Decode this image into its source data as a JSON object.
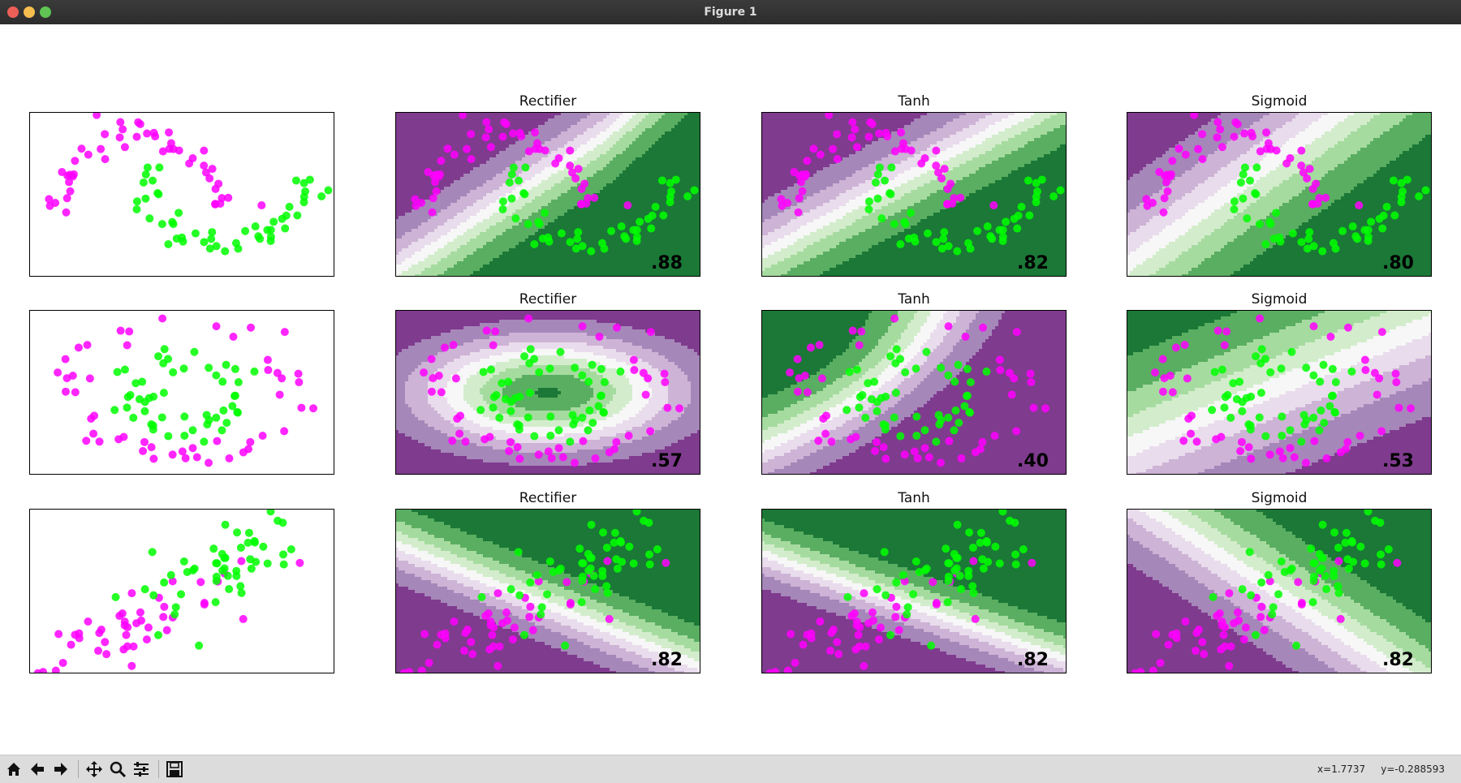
{
  "window": {
    "title": "Figure 1"
  },
  "toolbar": {
    "buttons": [
      {
        "name": "home-button",
        "icon": "home-icon"
      },
      {
        "name": "back-button",
        "icon": "arrow-left-icon"
      },
      {
        "name": "forward-button",
        "icon": "arrow-right-icon"
      },
      {
        "name": "pan-button",
        "icon": "move-icon"
      },
      {
        "name": "zoom-button",
        "icon": "magnifier-icon"
      },
      {
        "name": "configure-subplots-button",
        "icon": "sliders-icon"
      },
      {
        "name": "save-button",
        "icon": "floppy-disk-icon"
      }
    ],
    "coords": "x=1.7737     y=-0.288593"
  },
  "colors": {
    "class_a": "#ff00ff",
    "class_b": "#00ff00",
    "purple_levels": [
      "#7f3b8e",
      "#a687b9",
      "#cdb3d6",
      "#e9dcec"
    ],
    "neutral": "#f7f7f7",
    "green_levels": [
      "#d3edcc",
      "#a6dba0",
      "#5aae61",
      "#1b7837"
    ]
  },
  "chart_data": [
    {
      "type": "scatter",
      "dataset": "moons",
      "row": 0,
      "col": 0,
      "title": "",
      "score": ""
    },
    {
      "type": "contour",
      "dataset": "moons",
      "row": 0,
      "col": 1,
      "title": "Rectifier",
      "score": ".88"
    },
    {
      "type": "contour",
      "dataset": "moons",
      "row": 0,
      "col": 2,
      "title": "Tanh",
      "score": ".82"
    },
    {
      "type": "contour",
      "dataset": "moons",
      "row": 0,
      "col": 3,
      "title": "Sigmoid",
      "score": ".80"
    },
    {
      "type": "scatter",
      "dataset": "circles",
      "row": 1,
      "col": 0,
      "title": "",
      "score": ""
    },
    {
      "type": "contour",
      "dataset": "circles",
      "row": 1,
      "col": 1,
      "title": "Rectifier",
      "score": ".57"
    },
    {
      "type": "contour",
      "dataset": "circles",
      "row": 1,
      "col": 2,
      "title": "Tanh",
      "score": ".40"
    },
    {
      "type": "contour",
      "dataset": "circles",
      "row": 1,
      "col": 3,
      "title": "Sigmoid",
      "score": ".53"
    },
    {
      "type": "scatter",
      "dataset": "linear",
      "row": 2,
      "col": 0,
      "title": "",
      "score": ""
    },
    {
      "type": "contour",
      "dataset": "linear",
      "row": 2,
      "col": 1,
      "title": "Rectifier",
      "score": ".82"
    },
    {
      "type": "contour",
      "dataset": "linear",
      "row": 2,
      "col": 2,
      "title": "Tanh",
      "score": ".82"
    },
    {
      "type": "contour",
      "dataset": "linear",
      "row": 2,
      "col": 3,
      "title": "Sigmoid",
      "score": ".82"
    }
  ]
}
